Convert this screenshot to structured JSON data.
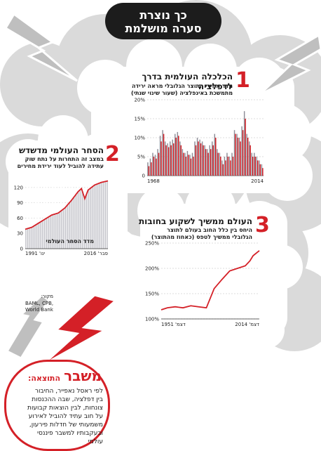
{
  "header": {
    "line1": "כך נוצרת",
    "line2": "סערה מושלמת"
  },
  "sections": [
    {
      "number": "1",
      "title": "הכלכלה העולמית בדרך לדפלציה",
      "subtitle1": "מדד מחירי התוצר הגלובלי מראה ירידה",
      "subtitle2": "מתמשכת באינפלציה (שעור שינוי שנתי)"
    },
    {
      "number": "2",
      "title": "הסחר העולמי מדשדש",
      "subtitle1": "במצב זה התחרות על נתח שוק",
      "subtitle2": "עתידה להוביל לעוד ירידת מחירים"
    },
    {
      "number": "3",
      "title": "העולם ממשיך לשקוע בחובות",
      "subtitle1": "היחס בין כלל החוב בעולם לתוצר",
      "subtitle2": "הגלובלי ממשיך לטפס (כאחוז מהתוצר)"
    }
  ],
  "source": {
    "label": "מקור:",
    "line1": "BAML, CPB,",
    "line2": "World Bank"
  },
  "result": {
    "label": "התוצאה:",
    "headline": "משבר",
    "lines": [
      "לפי ראסל נאפייר, החיבור",
      "בין דפלציה, שבה ההכנסות",
      "צונחות, לבין הוצאות קבועות",
      "על חוב עתיד להוביל לאירוע",
      "משמעותי של חדלות פירעון,",
      "ובעקבותיו למשבר פיננסי",
      "עולמי"
    ]
  },
  "colors": {
    "accent": "#d42027",
    "bar_grey": "#8f8f99",
    "dark": "#1c1c1c"
  },
  "chart_data": [
    {
      "type": "bar",
      "title": "הכלכלה העולמית בדרך לדפלציה",
      "x_tick_labels": [
        "1968",
        "2014"
      ],
      "y_tick_labels": [
        "0",
        "5%",
        "10%",
        "15%",
        "20%"
      ],
      "ylim": [
        0,
        20
      ],
      "categories": [
        "1968",
        "1969",
        "1970",
        "1971",
        "1972",
        "1973",
        "1974",
        "1975",
        "1976",
        "1977",
        "1978",
        "1979",
        "1980",
        "1981",
        "1982",
        "1983",
        "1984",
        "1985",
        "1986",
        "1987",
        "1988",
        "1989",
        "1990",
        "1991",
        "1992",
        "1993",
        "1994",
        "1995",
        "1996",
        "1997",
        "1998",
        "1999",
        "2000",
        "2001",
        "2002",
        "2003",
        "2004",
        "2005",
        "2006",
        "2007",
        "2008",
        "2009",
        "2010",
        "2011",
        "2012",
        "2013",
        "2014"
      ],
      "series": [
        {
          "color": "#8f8f99",
          "values": [
            3.5,
            4.5,
            6,
            5.5,
            7,
            10.5,
            12,
            9,
            8.5,
            9,
            9.5,
            11,
            11.5,
            9,
            7,
            6,
            6.5,
            5.5,
            6,
            9,
            10,
            9.5,
            9,
            8,
            7,
            8,
            9,
            11,
            7,
            6,
            4,
            5,
            6,
            5,
            6,
            12,
            11,
            10,
            13,
            17,
            11,
            9,
            6,
            6,
            5,
            4,
            3
          ]
        },
        {
          "color": "#d42027",
          "values": [
            2.5,
            3.5,
            5,
            4.5,
            6,
            9,
            11,
            8,
            7.5,
            8,
            8.5,
            10,
            10.5,
            8,
            6,
            5,
            5.5,
            4.5,
            5,
            8,
            9,
            8.5,
            8,
            7,
            6,
            7,
            8,
            10,
            6,
            5,
            3,
            4,
            5,
            4,
            5,
            11,
            10,
            9,
            12,
            15,
            10,
            8,
            5,
            5,
            4,
            3,
            2
          ]
        }
      ]
    },
    {
      "type": "area",
      "title": "הסחר העולמי מדשדש",
      "series_label": "מדד הסחר העולמי",
      "x_tick_labels": [
        "ינו' 1991",
        "פבר' 2016"
      ],
      "y_tick_labels": [
        "0",
        "30",
        "60",
        "90",
        "120"
      ],
      "ylim": [
        0,
        135
      ],
      "x": [
        1991,
        1993,
        1995,
        1997,
        1999,
        2001,
        2003,
        2005,
        2007,
        2008,
        2009,
        2010,
        2012,
        2014,
        2016
      ],
      "values": [
        38,
        42,
        50,
        58,
        66,
        70,
        80,
        95,
        112,
        118,
        98,
        115,
        125,
        130,
        133
      ]
    },
    {
      "type": "line",
      "title": "העולם ממשיך לשקוע בחובות",
      "x_tick_labels": [
        "דצמ' 1951",
        "דצמ' 2014"
      ],
      "y_tick_labels": [
        "100%",
        "150%",
        "200%",
        "250%"
      ],
      "ylim": [
        100,
        250
      ],
      "x": [
        1951,
        1955,
        1960,
        1965,
        1970,
        1975,
        1980,
        1985,
        1990,
        1995,
        2000,
        2005,
        2008,
        2010,
        2014
      ],
      "values": [
        118,
        122,
        124,
        122,
        126,
        124,
        122,
        160,
        178,
        195,
        200,
        205,
        215,
        225,
        235
      ]
    }
  ]
}
